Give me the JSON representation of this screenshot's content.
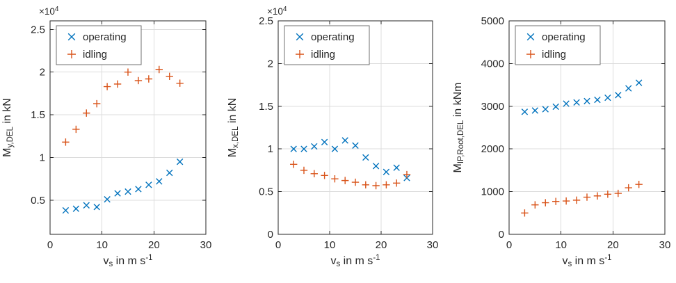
{
  "figure_title": "",
  "colors": {
    "operating": "#0072BD",
    "idling": "#D95319",
    "axis": "#262626",
    "grid": "#dcdcdc",
    "legend_border": "#707070",
    "background": "#ffffff"
  },
  "legend": {
    "position": "northwest",
    "entries": [
      {
        "label": "operating",
        "marker": "x",
        "color": "#0072BD"
      },
      {
        "label": "idling",
        "marker": "+",
        "color": "#D95319"
      }
    ]
  },
  "chart_data": [
    {
      "type": "scatter",
      "title": "",
      "xlabel": {
        "base": "v",
        "sub": "s",
        "rest": " in m s",
        "sup": "-1"
      },
      "ylabel": {
        "base": "M",
        "sub": "y,DEL",
        "rest": " in kN"
      },
      "exponent": {
        "base": "×10",
        "sup": "4"
      },
      "xlim": [
        0,
        30
      ],
      "xticks": [
        0,
        10,
        20,
        30
      ],
      "xtick_labels": [
        "0",
        "10",
        "20",
        "30"
      ],
      "ylim": [
        0.1,
        2.6
      ],
      "yticks": [
        0.5,
        1,
        1.5,
        2,
        2.5
      ],
      "ytick_labels": [
        "0.5",
        "1",
        "1.5",
        "2",
        "2.5"
      ],
      "grid": true,
      "legend_position": "northwest",
      "series": [
        {
          "name": "operating",
          "marker": "x",
          "color": "#0072BD",
          "x": [
            3,
            5,
            7,
            9,
            11,
            13,
            15,
            17,
            19,
            21,
            23,
            25
          ],
          "y": [
            0.38,
            0.4,
            0.44,
            0.42,
            0.51,
            0.58,
            0.6,
            0.63,
            0.68,
            0.72,
            0.82,
            0.95
          ]
        },
        {
          "name": "idling",
          "marker": "+",
          "color": "#D95319",
          "x": [
            3,
            5,
            7,
            9,
            11,
            13,
            15,
            17,
            19,
            21,
            23,
            25
          ],
          "y": [
            1.18,
            1.33,
            1.52,
            1.63,
            1.83,
            1.86,
            2.0,
            1.9,
            1.92,
            2.03,
            1.95,
            1.87
          ]
        }
      ]
    },
    {
      "type": "scatter",
      "title": "",
      "xlabel": {
        "base": "v",
        "sub": "s",
        "rest": " in m s",
        "sup": "-1"
      },
      "ylabel": {
        "base": "M",
        "sub": "x,DEL",
        "rest": " in kN"
      },
      "exponent": {
        "base": "×10",
        "sup": "4"
      },
      "xlim": [
        0,
        30
      ],
      "xticks": [
        0,
        10,
        20,
        30
      ],
      "xtick_labels": [
        "0",
        "10",
        "20",
        "30"
      ],
      "ylim": [
        0,
        2.5
      ],
      "yticks": [
        0,
        0.5,
        1,
        1.5,
        2,
        2.5
      ],
      "ytick_labels": [
        "0",
        "0.5",
        "1",
        "1.5",
        "2",
        "2.5"
      ],
      "grid": true,
      "legend_position": "northwest",
      "series": [
        {
          "name": "operating",
          "marker": "x",
          "color": "#0072BD",
          "x": [
            3,
            5,
            7,
            9,
            11,
            13,
            15,
            17,
            19,
            21,
            23,
            25
          ],
          "y": [
            1.0,
            1.0,
            1.03,
            1.08,
            1.0,
            1.1,
            1.04,
            0.9,
            0.8,
            0.73,
            0.78,
            0.66
          ]
        },
        {
          "name": "idling",
          "marker": "+",
          "color": "#D95319",
          "x": [
            3,
            5,
            7,
            9,
            11,
            13,
            15,
            17,
            19,
            21,
            23,
            25
          ],
          "y": [
            0.82,
            0.75,
            0.71,
            0.69,
            0.65,
            0.63,
            0.61,
            0.58,
            0.57,
            0.58,
            0.6,
            0.7
          ]
        }
      ]
    },
    {
      "type": "scatter",
      "title": "",
      "xlabel": {
        "base": "v",
        "sub": "s",
        "rest": " in m s",
        "sup": "-1"
      },
      "ylabel": {
        "base": "M",
        "sub": "IP,Root,DEL",
        "rest": " in kNm"
      },
      "exponent": null,
      "xlim": [
        0,
        30
      ],
      "xticks": [
        0,
        10,
        20,
        30
      ],
      "xtick_labels": [
        "0",
        "10",
        "20",
        "30"
      ],
      "ylim": [
        0,
        5000
      ],
      "yticks": [
        0,
        1000,
        2000,
        3000,
        4000,
        5000
      ],
      "ytick_labels": [
        "0",
        "1000",
        "2000",
        "3000",
        "4000",
        "5000"
      ],
      "grid": true,
      "legend_position": "northwest",
      "series": [
        {
          "name": "operating",
          "marker": "x",
          "color": "#0072BD",
          "x": [
            3,
            5,
            7,
            9,
            11,
            13,
            15,
            17,
            19,
            21,
            23,
            25
          ],
          "y": [
            2870,
            2900,
            2930,
            2990,
            3060,
            3090,
            3120,
            3150,
            3200,
            3260,
            3420,
            3550
          ]
        },
        {
          "name": "idling",
          "marker": "+",
          "color": "#D95319",
          "x": [
            3,
            5,
            7,
            9,
            11,
            13,
            15,
            17,
            19,
            21,
            23,
            25
          ],
          "y": [
            500,
            690,
            740,
            770,
            780,
            800,
            870,
            900,
            940,
            960,
            1090,
            1170
          ]
        }
      ]
    }
  ]
}
